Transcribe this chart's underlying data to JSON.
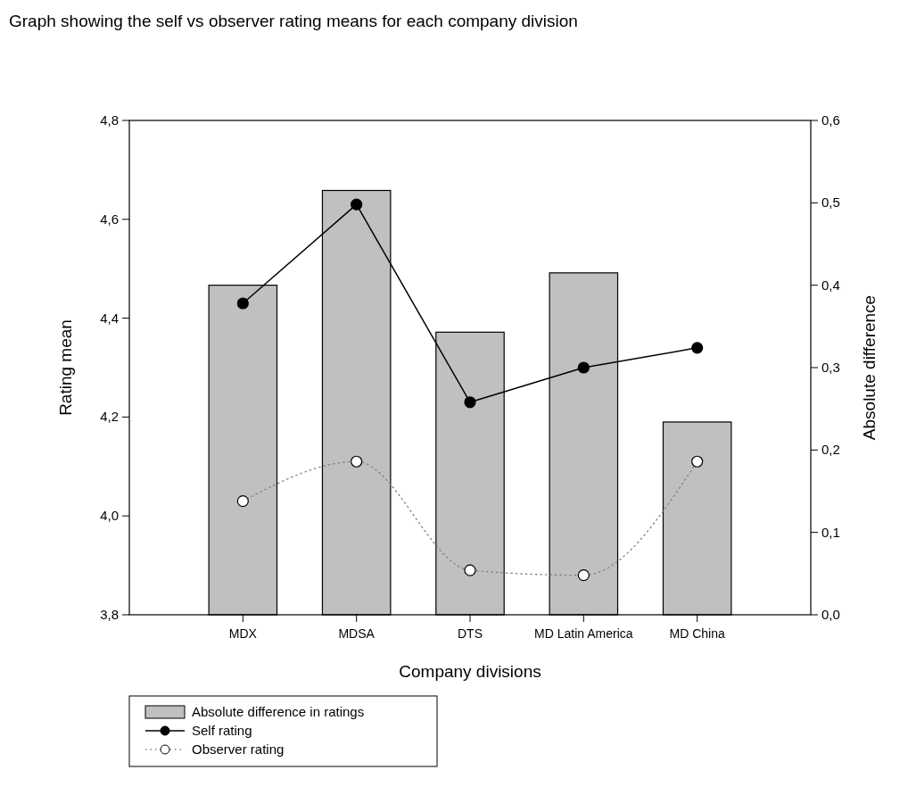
{
  "chart_data": {
    "type": "bar",
    "title": "Graph showing the self vs observer rating means for each company division",
    "xlabel": "Company divisions",
    "ylabel": "Rating mean",
    "y2label": "Absolute difference",
    "categories": [
      "MDX",
      "MDSA",
      "DTS",
      "MD Latin America",
      "MD China"
    ],
    "series": [
      {
        "name": "Absolute difference in ratings",
        "axis": "y2",
        "color": "#c0c0c0",
        "values": [
          0.4,
          0.515,
          0.343,
          0.415,
          0.234
        ]
      },
      {
        "name": "Self rating",
        "type": "line",
        "color": "#000000",
        "marker": "circle",
        "line_style": "solid",
        "values": [
          4.43,
          4.63,
          4.23,
          4.3,
          4.34
        ]
      },
      {
        "name": "Observer rating",
        "type": "line",
        "color": "#808080",
        "marker": "circle",
        "line_style": "dotted",
        "values": [
          4.03,
          4.11,
          3.89,
          3.88,
          4.11
        ]
      }
    ],
    "ylim": [
      3.8,
      4.8
    ],
    "yticks": [
      {
        "value": 3.8,
        "label": "3,8"
      },
      {
        "value": 4.0,
        "label": "4,0"
      },
      {
        "value": 4.2,
        "label": "4,2"
      },
      {
        "value": 4.4,
        "label": "4,4"
      },
      {
        "value": 4.6,
        "label": "4,6"
      },
      {
        "value": 4.8,
        "label": "4,8"
      }
    ],
    "y2lim": [
      0,
      0.6
    ],
    "y2ticks": [
      {
        "value": 0,
        "label": "0,0"
      },
      {
        "value": 0.1,
        "label": "0,1"
      },
      {
        "value": 0.2,
        "label": "0,2"
      },
      {
        "value": 0.3,
        "label": "0,3"
      },
      {
        "value": 0.4,
        "label": "0,4"
      },
      {
        "value": 0.5,
        "label": "0,5"
      },
      {
        "value": 0.6,
        "label": "0,6"
      }
    ],
    "legend": "bottom left"
  }
}
